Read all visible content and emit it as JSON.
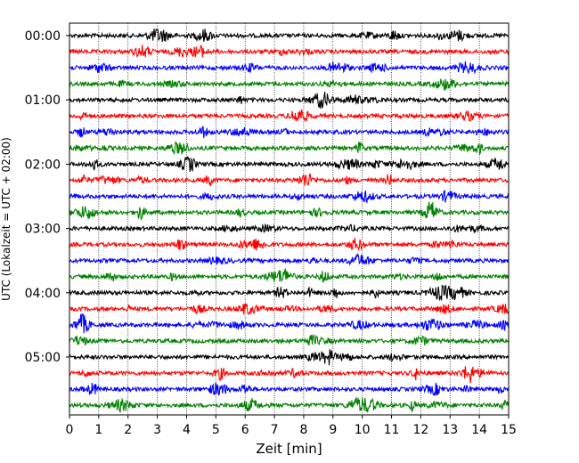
{
  "chart_data": {
    "type": "line",
    "title": "",
    "xlabel": "Zeit  [min]",
    "ylabel": "UTC (Lokalzeit = UTC + 02:00)",
    "xlim": [
      0,
      15
    ],
    "xticks": [
      0,
      1,
      2,
      3,
      4,
      5,
      6,
      7,
      8,
      9,
      10,
      11,
      12,
      13,
      14,
      15
    ],
    "y_tick_labels": [
      "00:00",
      "01:00",
      "02:00",
      "03:00",
      "04:00",
      "05:00"
    ],
    "row_interval_min": 15,
    "rows_per_hour": 4,
    "num_rows": 24,
    "vertical_gridlines": true,
    "colors": [
      "#000000",
      "#ff0000",
      "#0000ff",
      "#008000"
    ],
    "traces": "continuous seismometer helicorder: 24 rows of 15-minute traces, colors cycling black, red, blue, green"
  }
}
